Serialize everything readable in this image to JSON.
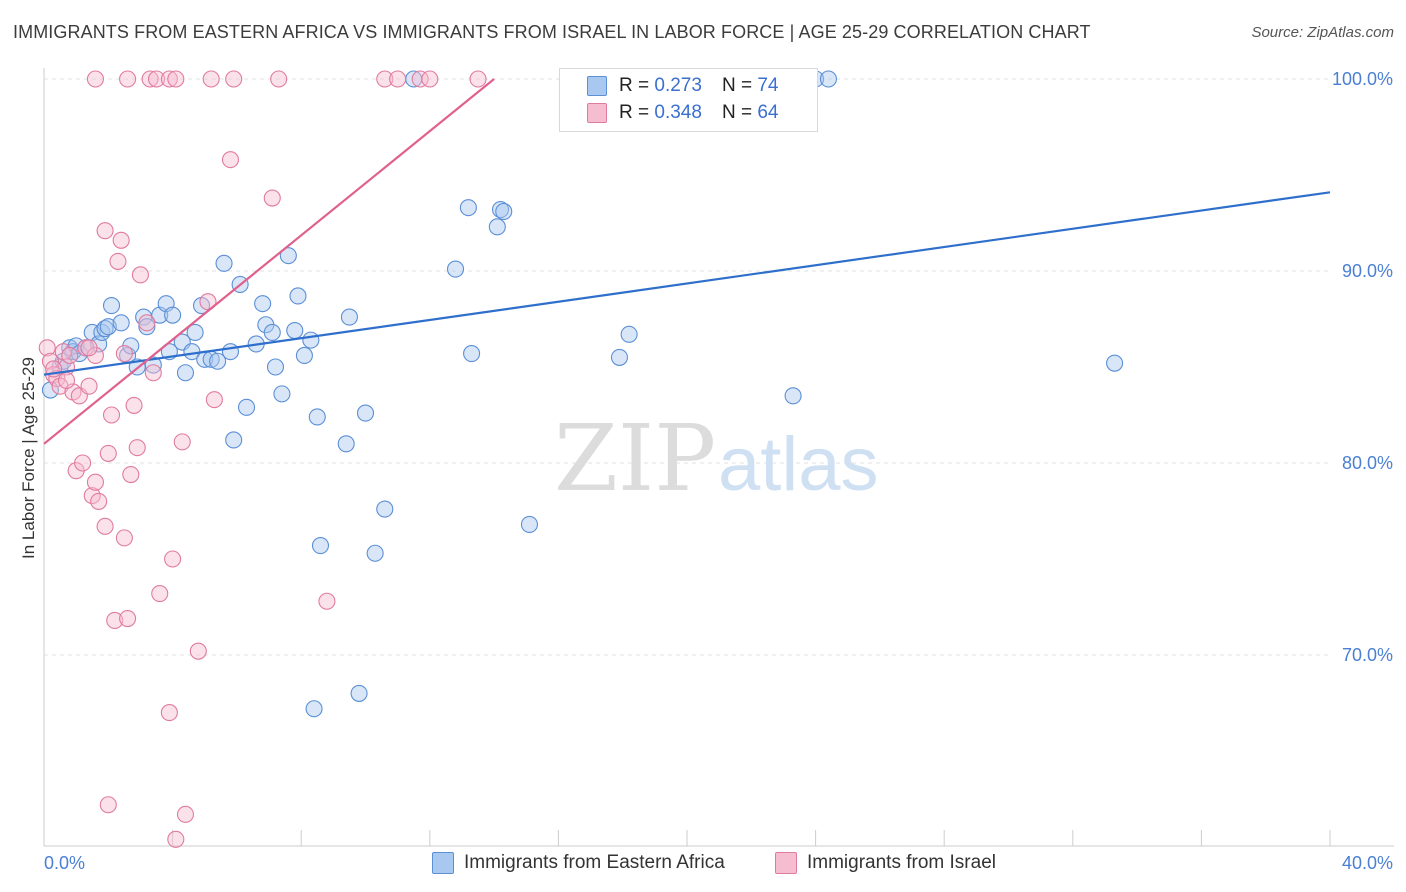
{
  "title": "IMMIGRANTS FROM EASTERN AFRICA VS IMMIGRANTS FROM ISRAEL IN LABOR FORCE | AGE 25-29 CORRELATION CHART",
  "source": "Source: ZipAtlas.com",
  "watermark": {
    "zip": "ZIP",
    "atlas": "atlas"
  },
  "colors": {
    "blue_fill": "#a9c8f0",
    "blue_stroke": "#5b8fd6",
    "blue_line": "#2f6fcc",
    "pink_fill": "#f6bcd0",
    "pink_stroke": "#e07ba0",
    "pink_line": "#e0608e",
    "accent_text": "#4a7fd4"
  },
  "legend": {
    "rows": [
      {
        "r_label": "R =",
        "r_value": "0.273",
        "n_label": "N =",
        "n_value": "74"
      },
      {
        "r_label": "R =",
        "r_value": "0.348",
        "n_label": "N =",
        "n_value": "64"
      }
    ]
  },
  "chart_data": {
    "type": "scatter",
    "title": "IMMIGRANTS FROM EASTERN AFRICA VS IMMIGRANTS FROM ISRAEL IN LABOR FORCE | AGE 25-29 CORRELATION CHART",
    "xlabel": "",
    "ylabel": "In Labor Force | Age 25-29",
    "xlim": [
      0,
      40
    ],
    "ylim": [
      60,
      102
    ],
    "x_tick_labels": [
      "0.0%",
      "40.0%"
    ],
    "y_ticks": [
      70,
      80,
      90,
      100
    ],
    "y_tick_labels": [
      "70.0%",
      "80.0%",
      "90.0%",
      "100.0%"
    ],
    "grid": true,
    "legend_position": "top-center",
    "series": [
      {
        "name": "Immigrants from Eastern Africa",
        "color": "#5b8fd6",
        "trend": {
          "x": [
            0,
            40
          ],
          "y": [
            84.6,
            94.1
          ]
        },
        "points": [
          [
            0.5,
            85.0
          ],
          [
            0.6,
            85.3
          ],
          [
            0.8,
            86.0
          ],
          [
            0.9,
            85.8
          ],
          [
            1.0,
            86.1
          ],
          [
            1.1,
            85.7
          ],
          [
            1.3,
            86.0
          ],
          [
            1.5,
            86.8
          ],
          [
            1.7,
            86.2
          ],
          [
            1.8,
            86.8
          ],
          [
            1.9,
            87.0
          ],
          [
            2.0,
            87.1
          ],
          [
            2.1,
            88.2
          ],
          [
            2.4,
            87.3
          ],
          [
            2.6,
            85.6
          ],
          [
            2.7,
            86.1
          ],
          [
            2.9,
            85.0
          ],
          [
            3.1,
            87.6
          ],
          [
            3.2,
            87.1
          ],
          [
            3.4,
            85.1
          ],
          [
            3.6,
            87.7
          ],
          [
            3.8,
            88.3
          ],
          [
            3.9,
            85.8
          ],
          [
            4.0,
            87.7
          ],
          [
            4.3,
            86.3
          ],
          [
            4.4,
            84.7
          ],
          [
            4.6,
            85.8
          ],
          [
            4.7,
            86.8
          ],
          [
            4.9,
            88.2
          ],
          [
            5.0,
            85.4
          ],
          [
            5.2,
            85.4
          ],
          [
            5.4,
            85.3
          ],
          [
            5.6,
            90.4
          ],
          [
            5.8,
            85.8
          ],
          [
            5.9,
            81.2
          ],
          [
            6.1,
            89.3
          ],
          [
            6.3,
            82.9
          ],
          [
            6.6,
            86.2
          ],
          [
            6.8,
            88.3
          ],
          [
            6.9,
            87.2
          ],
          [
            7.1,
            86.8
          ],
          [
            7.2,
            85.0
          ],
          [
            7.4,
            83.6
          ],
          [
            7.6,
            90.8
          ],
          [
            7.8,
            86.9
          ],
          [
            7.9,
            88.7
          ],
          [
            8.1,
            85.6
          ],
          [
            8.3,
            86.4
          ],
          [
            8.4,
            67.2
          ],
          [
            8.5,
            82.4
          ],
          [
            8.6,
            75.7
          ],
          [
            9.4,
            81.0
          ],
          [
            9.5,
            87.6
          ],
          [
            9.8,
            68.0
          ],
          [
            10.0,
            82.6
          ],
          [
            10.3,
            75.3
          ],
          [
            10.6,
            77.6
          ],
          [
            11.5,
            100.0
          ],
          [
            12.8,
            90.1
          ],
          [
            13.2,
            93.3
          ],
          [
            13.3,
            85.7
          ],
          [
            14.1,
            92.3
          ],
          [
            14.2,
            93.2
          ],
          [
            14.3,
            93.1
          ],
          [
            15.1,
            76.8
          ],
          [
            17.7,
            100.0
          ],
          [
            17.9,
            85.5
          ],
          [
            18.2,
            86.7
          ],
          [
            23.0,
            100.0
          ],
          [
            23.3,
            83.5
          ],
          [
            24.0,
            100.0
          ],
          [
            24.4,
            100.0
          ],
          [
            33.3,
            85.2
          ],
          [
            0.2,
            83.8
          ]
        ]
      },
      {
        "name": "Immigrants from Israel",
        "color": "#e07ba0",
        "trend": {
          "x": [
            0,
            14
          ],
          "y": [
            81.0,
            100.0
          ]
        },
        "points": [
          [
            0.1,
            86.0
          ],
          [
            0.2,
            85.3
          ],
          [
            0.3,
            84.6
          ],
          [
            0.4,
            84.4
          ],
          [
            0.5,
            84.0
          ],
          [
            0.6,
            85.8
          ],
          [
            0.7,
            85.0
          ],
          [
            0.8,
            85.6
          ],
          [
            0.9,
            83.7
          ],
          [
            1.0,
            79.6
          ],
          [
            1.1,
            83.5
          ],
          [
            1.2,
            80.0
          ],
          [
            1.3,
            86.0
          ],
          [
            1.4,
            84.0
          ],
          [
            1.5,
            78.3
          ],
          [
            1.6,
            85.6
          ],
          [
            1.6,
            79.0
          ],
          [
            1.7,
            78.0
          ],
          [
            1.9,
            92.1
          ],
          [
            1.9,
            76.7
          ],
          [
            2.0,
            80.5
          ],
          [
            2.1,
            82.5
          ],
          [
            2.2,
            71.8
          ],
          [
            2.3,
            90.5
          ],
          [
            2.4,
            91.6
          ],
          [
            2.5,
            76.1
          ],
          [
            2.6,
            71.9
          ],
          [
            2.7,
            79.4
          ],
          [
            2.8,
            83.0
          ],
          [
            2.9,
            80.8
          ],
          [
            3.0,
            89.8
          ],
          [
            3.2,
            87.3
          ],
          [
            3.4,
            84.7
          ],
          [
            3.6,
            73.2
          ],
          [
            3.9,
            67.0
          ],
          [
            4.0,
            75.0
          ],
          [
            4.1,
            60.4
          ],
          [
            4.3,
            81.1
          ],
          [
            4.4,
            61.7
          ],
          [
            4.8,
            70.2
          ],
          [
            5.1,
            88.4
          ],
          [
            5.3,
            83.3
          ],
          [
            5.8,
            95.8
          ],
          [
            7.1,
            93.8
          ],
          [
            8.8,
            72.8
          ],
          [
            1.6,
            100.0
          ],
          [
            2.6,
            100.0
          ],
          [
            3.3,
            100.0
          ],
          [
            3.5,
            100.0
          ],
          [
            3.9,
            100.0
          ],
          [
            4.1,
            100.0
          ],
          [
            5.2,
            100.0
          ],
          [
            5.9,
            100.0
          ],
          [
            7.3,
            100.0
          ],
          [
            10.6,
            100.0
          ],
          [
            11.0,
            100.0
          ],
          [
            11.7,
            100.0
          ],
          [
            12.0,
            100.0
          ],
          [
            13.5,
            100.0
          ],
          [
            2.0,
            62.2
          ],
          [
            1.4,
            86.0
          ],
          [
            0.7,
            84.3
          ],
          [
            0.3,
            84.9
          ],
          [
            2.5,
            85.7
          ]
        ]
      }
    ]
  },
  "bottom_legend": [
    {
      "label": "Immigrants from Eastern Africa"
    },
    {
      "label": "Immigrants from Israel"
    }
  ]
}
